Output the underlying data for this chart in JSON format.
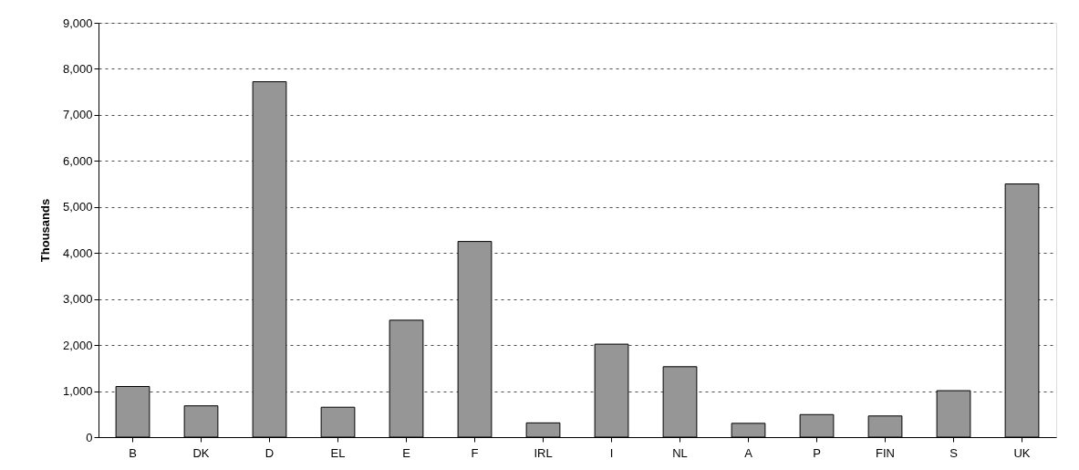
{
  "chart_data": {
    "type": "bar",
    "ylabel": "Thousands",
    "categories": [
      "B",
      "DK",
      "D",
      "EL",
      "E",
      "F",
      "IRL",
      "I",
      "NL",
      "A",
      "P",
      "FIN",
      "S",
      "UK"
    ],
    "values": [
      1100,
      680,
      7720,
      650,
      2540,
      4250,
      310,
      2020,
      1530,
      300,
      490,
      460,
      1010,
      5500
    ],
    "color": "#969696",
    "ylim": [
      0,
      9000
    ],
    "yticks": [
      0,
      {
        "value": 1000,
        "label": "1,000"
      },
      {
        "value": 2000,
        "label": "2,000"
      },
      {
        "value": 3000,
        "label": "3,000"
      },
      {
        "value": 4000,
        "label": "4,000"
      },
      {
        "value": 5000,
        "label": "5,000"
      },
      {
        "value": 6000,
        "label": "6,000"
      },
      {
        "value": 7000,
        "label": "7,000"
      },
      {
        "value": 8000,
        "label": "8,000"
      },
      {
        "value": 9000,
        "label": "9,000"
      }
    ],
    "grid": "y"
  }
}
